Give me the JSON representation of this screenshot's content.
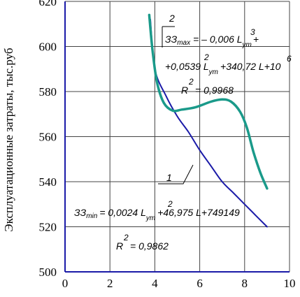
{
  "chart_data": {
    "type": "line",
    "xlabel": "",
    "ylabel": "Эксплуатационные затраты, тыс.руб",
    "xlim": [
      0,
      10
    ],
    "ylim": [
      500,
      620
    ],
    "x_ticks": [
      "0",
      "2",
      "4",
      "6",
      "8",
      "10"
    ],
    "y_ticks": [
      "500",
      "520",
      "540",
      "560",
      "580",
      "600",
      "620"
    ],
    "grid": true,
    "series": [
      {
        "name": "1",
        "color": "#1a1aa8",
        "points": [
          [
            3.8,
            612
          ],
          [
            4.0,
            590
          ],
          [
            4.5,
            578
          ],
          [
            5.0,
            569
          ],
          [
            5.5,
            562
          ],
          [
            6.0,
            554
          ],
          [
            6.5,
            547
          ],
          [
            7.0,
            540
          ],
          [
            7.5,
            535
          ],
          [
            8.0,
            530
          ],
          [
            8.5,
            525
          ],
          [
            9.0,
            520
          ]
        ]
      },
      {
        "name": "2",
        "color": "#1a9a8a",
        "points": [
          [
            3.75,
            614
          ],
          [
            3.9,
            598
          ],
          [
            4.1,
            584
          ],
          [
            4.4,
            575
          ],
          [
            4.8,
            571.5
          ],
          [
            5.2,
            572
          ],
          [
            5.8,
            573
          ],
          [
            6.5,
            575.5
          ],
          [
            7.0,
            576.5
          ],
          [
            7.4,
            575.5
          ],
          [
            7.8,
            571
          ],
          [
            8.1,
            564
          ],
          [
            8.4,
            553
          ],
          [
            8.7,
            544
          ],
          [
            9.0,
            537
          ]
        ]
      }
    ],
    "annotations": {
      "label_2": "2",
      "label_1": "1",
      "max_eq_lhs": "ЗЗ",
      "max_eq_sub": "max",
      "max_eq_line1_rhs": "= – 0,006 L",
      "max_eq_line1_sub": "ут",
      "max_eq_line1_sup": "3",
      "max_eq_line1_end": "+",
      "max_eq_line2_a": "+0,0539 L",
      "max_eq_line2_sub": "ут",
      "max_eq_line2_sup": "2",
      "max_eq_line2_b": "+340,72 L+10",
      "max_eq_line2_sup2": "6",
      "max_r2_a": "R",
      "max_r2_sup": "2",
      "max_r2_b": " = 0,9968",
      "min_eq_lhs": "ЗЗ",
      "min_eq_sub": "min",
      "min_eq_a": "= 0,0024 L",
      "min_eq_sub2": "ут",
      "min_eq_sup": "2",
      "min_eq_b": "+46,975 L+749149",
      "min_r2_a": "R",
      "min_r2_sup": "2",
      "min_r2_b": " = 0,9862"
    }
  }
}
